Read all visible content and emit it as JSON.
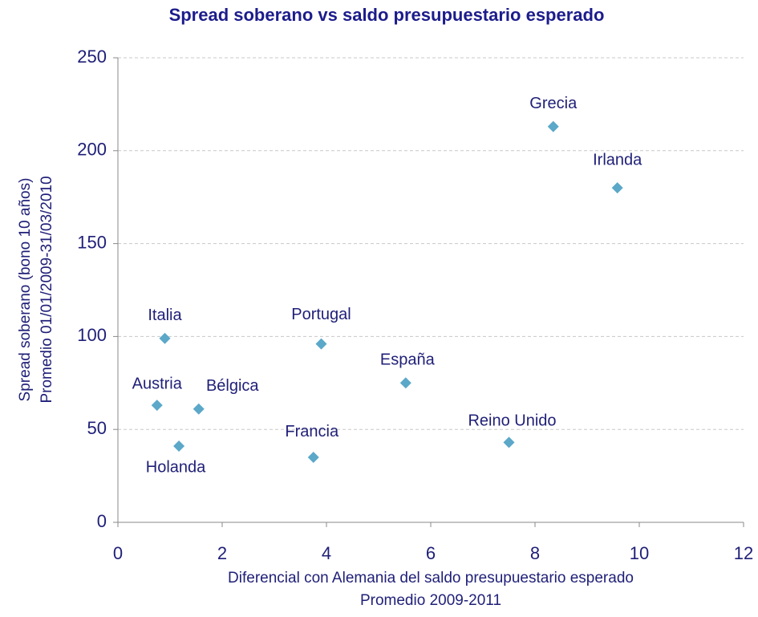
{
  "chart_data": {
    "type": "scatter",
    "title": "Spread soberano vs saldo presupuestario esperado",
    "y_label": [
      "Spread soberano (bono 10 años)",
      "Promedio 01/01/2009-31/03/2010"
    ],
    "x_label": [
      "Diferencial con Alemania del saldo presupuestario esperado",
      "Promedio 2009-2011"
    ],
    "labels": [
      "Grecia",
      "Irlanda",
      "Italia",
      "Portugal",
      "España",
      "Austria",
      "Bélgica",
      "Holanda",
      "Francia",
      "Reino Unido"
    ],
    "x": [
      8.35,
      9.58,
      0.9,
      3.9,
      5.52,
      0.75,
      1.55,
      1.17,
      3.75,
      7.5
    ],
    "values": [
      213,
      180,
      99,
      96,
      75,
      63,
      61,
      41,
      35,
      43
    ],
    "color": "#5ba8c9",
    "xlim": [
      0,
      12
    ],
    "xticks": [
      0,
      2,
      4,
      6,
      8,
      10,
      12
    ],
    "ylim": [
      0,
      250
    ],
    "yticks": [
      0,
      50,
      100,
      150,
      200,
      250
    ],
    "grid": true
  }
}
